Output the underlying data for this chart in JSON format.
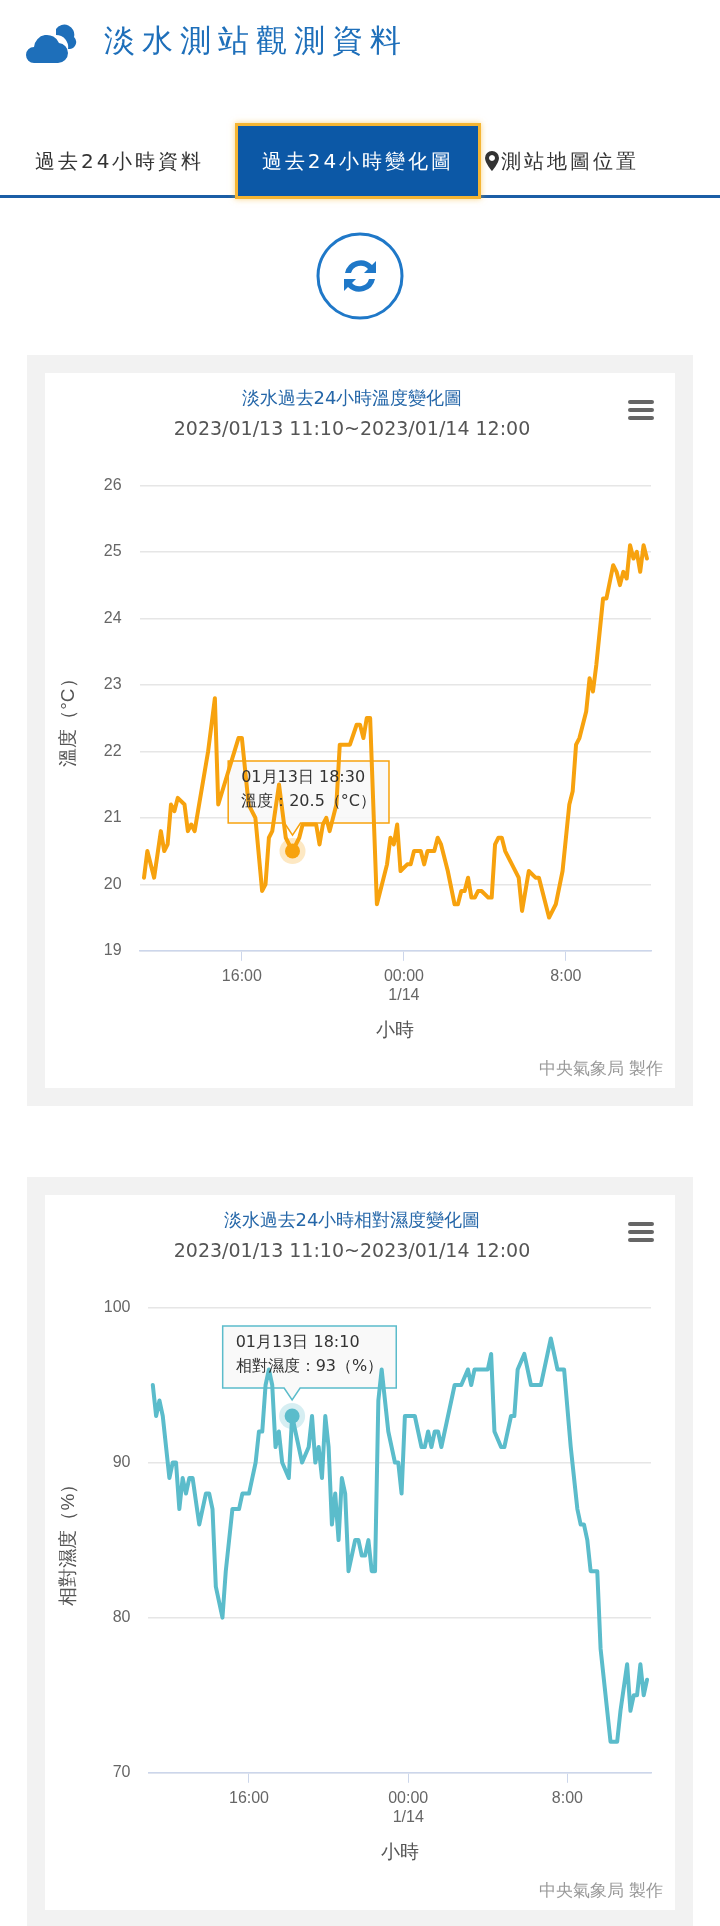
{
  "chart_data": [
    {
      "type": "other",
      "title": "淡水測站觀測資料",
      "annotations": [
        "過去24小時資料",
        "過去24小時變化圖",
        "測站地圖位置"
      ]
    },
    {
      "type": "line",
      "title": "淡水過去24小時溫度變化圖",
      "subtitle": "2023/01/13 11:10~2023/01/14 12:00",
      "xlabel": "小時",
      "ylabel": "溫度（°C）",
      "color": "#f7a20e",
      "marker": "none",
      "grid": "y",
      "xlim": [
        "2023-01-13T10:57",
        "2023-01-14T12:12"
      ],
      "xticks": [
        {
          "value": "2023-01-13T16:00",
          "label": "16:00"
        },
        {
          "value": "2023-01-14T00:00",
          "label": "00:00\n1/14"
        },
        {
          "value": "2023-01-14T08:00",
          "label": "8:00"
        }
      ],
      "ylim": [
        19,
        26
      ],
      "yticks": [
        19,
        20,
        21,
        22,
        23,
        24,
        25,
        26
      ],
      "x": [
        "2023-01-13T11:10",
        "2023-01-13T11:20",
        "2023-01-13T11:40",
        "2023-01-13T12:00",
        "2023-01-13T12:10",
        "2023-01-13T12:20",
        "2023-01-13T12:30",
        "2023-01-13T12:40",
        "2023-01-13T12:50",
        "2023-01-13T13:10",
        "2023-01-13T13:20",
        "2023-01-13T13:30",
        "2023-01-13T13:40",
        "2023-01-13T13:50",
        "2023-01-13T14:20",
        "2023-01-13T14:40",
        "2023-01-13T14:50",
        "2023-01-13T15:20",
        "2023-01-13T15:50",
        "2023-01-13T16:00",
        "2023-01-13T16:20",
        "2023-01-13T16:40",
        "2023-01-13T17:00",
        "2023-01-13T17:10",
        "2023-01-13T17:20",
        "2023-01-13T17:30",
        "2023-01-13T17:50",
        "2023-01-13T18:10",
        "2023-01-13T18:30",
        "2023-01-13T18:50",
        "2023-01-13T19:00",
        "2023-01-13T19:20",
        "2023-01-13T19:40",
        "2023-01-13T19:50",
        "2023-01-13T20:00",
        "2023-01-13T20:10",
        "2023-01-13T20:20",
        "2023-01-13T20:40",
        "2023-01-13T20:50",
        "2023-01-13T21:20",
        "2023-01-13T21:40",
        "2023-01-13T21:50",
        "2023-01-13T22:00",
        "2023-01-13T22:10",
        "2023-01-13T22:20",
        "2023-01-13T22:40",
        "2023-01-13T22:50",
        "2023-01-13T23:10",
        "2023-01-13T23:20",
        "2023-01-13T23:30",
        "2023-01-13T23:40",
        "2023-01-13T23:50",
        "2023-01-14T00:10",
        "2023-01-14T00:20",
        "2023-01-14T00:30",
        "2023-01-14T00:50",
        "2023-01-14T01:00",
        "2023-01-14T01:10",
        "2023-01-14T01:30",
        "2023-01-14T01:40",
        "2023-01-14T01:50",
        "2023-01-14T02:10",
        "2023-01-14T02:30",
        "2023-01-14T02:40",
        "2023-01-14T02:50",
        "2023-01-14T03:00",
        "2023-01-14T03:10",
        "2023-01-14T03:20",
        "2023-01-14T03:30",
        "2023-01-14T03:40",
        "2023-01-14T03:50",
        "2023-01-14T04:10",
        "2023-01-14T04:20",
        "2023-01-14T04:30",
        "2023-01-14T04:40",
        "2023-01-14T04:50",
        "2023-01-14T05:00",
        "2023-01-14T05:40",
        "2023-01-14T05:50",
        "2023-01-14T06:10",
        "2023-01-14T06:30",
        "2023-01-14T06:40",
        "2023-01-14T06:50",
        "2023-01-14T07:10",
        "2023-01-14T07:30",
        "2023-01-14T07:50",
        "2023-01-14T08:10",
        "2023-01-14T08:20",
        "2023-01-14T08:30",
        "2023-01-14T08:40",
        "2023-01-14T09:00",
        "2023-01-14T09:10",
        "2023-01-14T09:20",
        "2023-01-14T09:30",
        "2023-01-14T09:50",
        "2023-01-14T10:00",
        "2023-01-14T10:20",
        "2023-01-14T10:30",
        "2023-01-14T10:40",
        "2023-01-14T10:50",
        "2023-01-14T11:00",
        "2023-01-14T11:10",
        "2023-01-14T11:20",
        "2023-01-14T11:30",
        "2023-01-14T11:40",
        "2023-01-14T11:50",
        "2023-01-14T12:00"
      ],
      "values": [
        20.1,
        20.5,
        20.1,
        20.8,
        20.5,
        20.6,
        21.2,
        21.1,
        21.3,
        21.2,
        20.8,
        20.9,
        20.8,
        21.1,
        22.0,
        22.8,
        21.2,
        21.7,
        22.2,
        22.2,
        21.2,
        21.0,
        19.9,
        20.0,
        20.7,
        20.8,
        21.5,
        20.7,
        20.5,
        20.7,
        20.9,
        20.9,
        20.9,
        20.6,
        20.9,
        21.0,
        20.8,
        21.2,
        22.1,
        22.1,
        22.4,
        22.4,
        22.2,
        22.5,
        22.5,
        19.7,
        19.9,
        20.3,
        20.7,
        20.6,
        20.9,
        20.2,
        20.3,
        20.3,
        20.5,
        20.5,
        20.3,
        20.5,
        20.5,
        20.7,
        20.6,
        20.2,
        19.7,
        19.7,
        19.9,
        19.9,
        20.1,
        19.8,
        19.8,
        19.9,
        19.9,
        19.8,
        19.8,
        20.6,
        20.7,
        20.7,
        20.5,
        20.1,
        19.6,
        20.2,
        20.1,
        20.1,
        19.9,
        19.5,
        19.7,
        20.2,
        21.2,
        21.4,
        22.1,
        22.2,
        22.6,
        23.1,
        22.9,
        23.3,
        24.3,
        24.3,
        24.8,
        24.7,
        24.5,
        24.7,
        24.6,
        25.1,
        24.9,
        25.0,
        24.7,
        25.1,
        24.9
      ],
      "annotations": [
        {
          "text": "01月13日 18:30\n溫度：20.5（°C）",
          "x": "2023-01-13T18:30",
          "y": 20.5
        },
        "中央氣象局 製作"
      ]
    },
    {
      "type": "line",
      "title": "淡水過去24小時相對濕度變化圖",
      "subtitle": "2023/01/13 11:10~2023/01/14 12:00",
      "xlabel": "小時",
      "ylabel": "相對濕度（%）",
      "color": "#5bbccb",
      "marker": "none",
      "grid": "y",
      "xlim": [
        "2023-01-13T10:57",
        "2023-01-14T12:12"
      ],
      "xticks": [
        {
          "value": "2023-01-13T16:00",
          "label": "16:00"
        },
        {
          "value": "2023-01-14T00:00",
          "label": "00:00\n1/14"
        },
        {
          "value": "2023-01-14T08:00",
          "label": "8:00"
        }
      ],
      "ylim": [
        70,
        100
      ],
      "yticks": [
        70,
        80,
        90,
        100
      ],
      "x": [
        "2023-01-13T11:10",
        "2023-01-13T11:20",
        "2023-01-13T11:30",
        "2023-01-13T11:40",
        "2023-01-13T12:00",
        "2023-01-13T12:10",
        "2023-01-13T12:20",
        "2023-01-13T12:30",
        "2023-01-13T12:40",
        "2023-01-13T12:50",
        "2023-01-13T13:00",
        "2023-01-13T13:10",
        "2023-01-13T13:30",
        "2023-01-13T13:50",
        "2023-01-13T14:00",
        "2023-01-13T14:10",
        "2023-01-13T14:20",
        "2023-01-13T14:40",
        "2023-01-13T14:50",
        "2023-01-13T15:10",
        "2023-01-13T15:30",
        "2023-01-13T15:40",
        "2023-01-13T16:00",
        "2023-01-13T16:20",
        "2023-01-13T16:30",
        "2023-01-13T16:40",
        "2023-01-13T16:50",
        "2023-01-13T17:00",
        "2023-01-13T17:10",
        "2023-01-13T17:20",
        "2023-01-13T17:30",
        "2023-01-13T17:40",
        "2023-01-13T18:00",
        "2023-01-13T18:10",
        "2023-01-13T18:40",
        "2023-01-13T19:00",
        "2023-01-13T19:10",
        "2023-01-13T19:20",
        "2023-01-13T19:30",
        "2023-01-13T19:40",
        "2023-01-13T19:50",
        "2023-01-13T20:00",
        "2023-01-13T20:10",
        "2023-01-13T20:20",
        "2023-01-13T20:30",
        "2023-01-13T20:40",
        "2023-01-13T20:50",
        "2023-01-13T21:00",
        "2023-01-13T21:20",
        "2023-01-13T21:30",
        "2023-01-13T21:40",
        "2023-01-13T21:50",
        "2023-01-13T22:00",
        "2023-01-13T22:10",
        "2023-01-13T22:20",
        "2023-01-13T22:30",
        "2023-01-13T22:40",
        "2023-01-13T22:50",
        "2023-01-13T23:00",
        "2023-01-13T23:20",
        "2023-01-13T23:30",
        "2023-01-13T23:40",
        "2023-01-13T23:50",
        "2023-01-14T00:20",
        "2023-01-14T00:40",
        "2023-01-14T00:50",
        "2023-01-14T01:00",
        "2023-01-14T01:10",
        "2023-01-14T01:20",
        "2023-01-14T01:30",
        "2023-01-14T01:40",
        "2023-01-14T02:20",
        "2023-01-14T02:40",
        "2023-01-14T03:00",
        "2023-01-14T03:10",
        "2023-01-14T03:20",
        "2023-01-14T04:00",
        "2023-01-14T04:10",
        "2023-01-14T04:20",
        "2023-01-14T04:40",
        "2023-01-14T04:50",
        "2023-01-14T05:10",
        "2023-01-14T05:20",
        "2023-01-14T05:30",
        "2023-01-14T05:50",
        "2023-01-14T06:10",
        "2023-01-14T06:40",
        "2023-01-14T07:10",
        "2023-01-14T07:30",
        "2023-01-14T07:50",
        "2023-01-14T08:10",
        "2023-01-14T08:30",
        "2023-01-14T08:40",
        "2023-01-14T08:50",
        "2023-01-14T09:00",
        "2023-01-14T09:10",
        "2023-01-14T09:30",
        "2023-01-14T09:40",
        "2023-01-14T10:10",
        "2023-01-14T10:30",
        "2023-01-14T10:40",
        "2023-01-14T11:00",
        "2023-01-14T11:10",
        "2023-01-14T11:20",
        "2023-01-14T11:30",
        "2023-01-14T11:40",
        "2023-01-14T11:50",
        "2023-01-14T12:00"
      ],
      "values": [
        95,
        93,
        94,
        93,
        89,
        90,
        90,
        87,
        89,
        88,
        89,
        89,
        86,
        88,
        88,
        87,
        82,
        80,
        83,
        87,
        87,
        88,
        88,
        90,
        92,
        92,
        95,
        96,
        95,
        91,
        92,
        90,
        89,
        93,
        90,
        91,
        93,
        90,
        91,
        89,
        93,
        91,
        86,
        88,
        85,
        89,
        88,
        83,
        85,
        85,
        84,
        84,
        85,
        83,
        83,
        94,
        96,
        94,
        92,
        90,
        90,
        88,
        93,
        93,
        91,
        91,
        92,
        91,
        92,
        92,
        91,
        95,
        95,
        96,
        95,
        96,
        96,
        97,
        92,
        91,
        91,
        93,
        93,
        96,
        97,
        95,
        95,
        98,
        96,
        96,
        91,
        87,
        86,
        86,
        85,
        83,
        83,
        78,
        72,
        72,
        74,
        77,
        74,
        75,
        75,
        77,
        75,
        76
      ],
      "annotations": [
        {
          "text": "01月13日 18:10\n相對濕度：93（%）",
          "x": "2023-01-13T18:10",
          "y": 93
        },
        "中央氣象局 製作"
      ]
    }
  ]
}
